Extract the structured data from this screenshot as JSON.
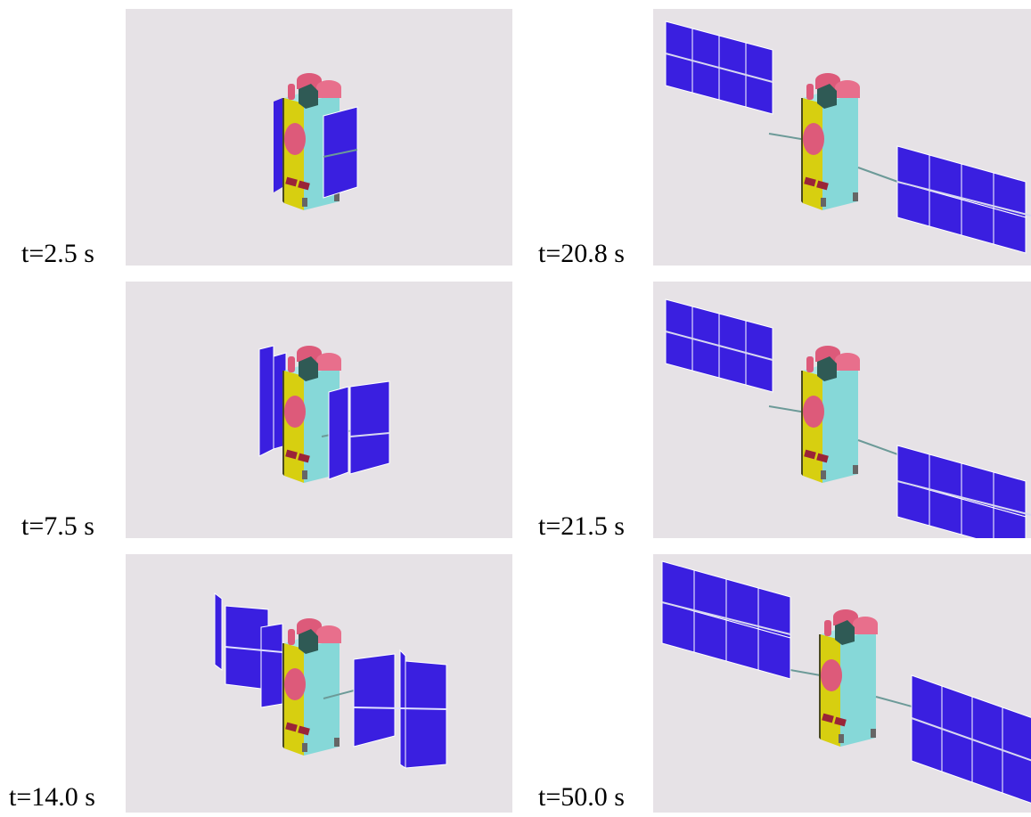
{
  "colors": {
    "background": "#e6e2e6",
    "panel_blue": "#3a1fe0",
    "panel_blue_dark": "#2a14b0",
    "body_cyan": "#86d8d8",
    "side_yellow": "#d7cf10",
    "tank_pink": "#dd5a7a",
    "box_teal": "#2f5a55",
    "boom_gray": "#6c9a98",
    "thruster_red": "#9a2438"
  },
  "frames": [
    {
      "label": "t=2.5 s",
      "stage": 0
    },
    {
      "label": "t=20.8 s",
      "stage": 3
    },
    {
      "label": "t=7.5 s",
      "stage": 1
    },
    {
      "label": "t=21.5 s",
      "stage": 4
    },
    {
      "label": "t=14.0 s",
      "stage": 2
    },
    {
      "label": "t=50.0 s",
      "stage": 5
    }
  ]
}
